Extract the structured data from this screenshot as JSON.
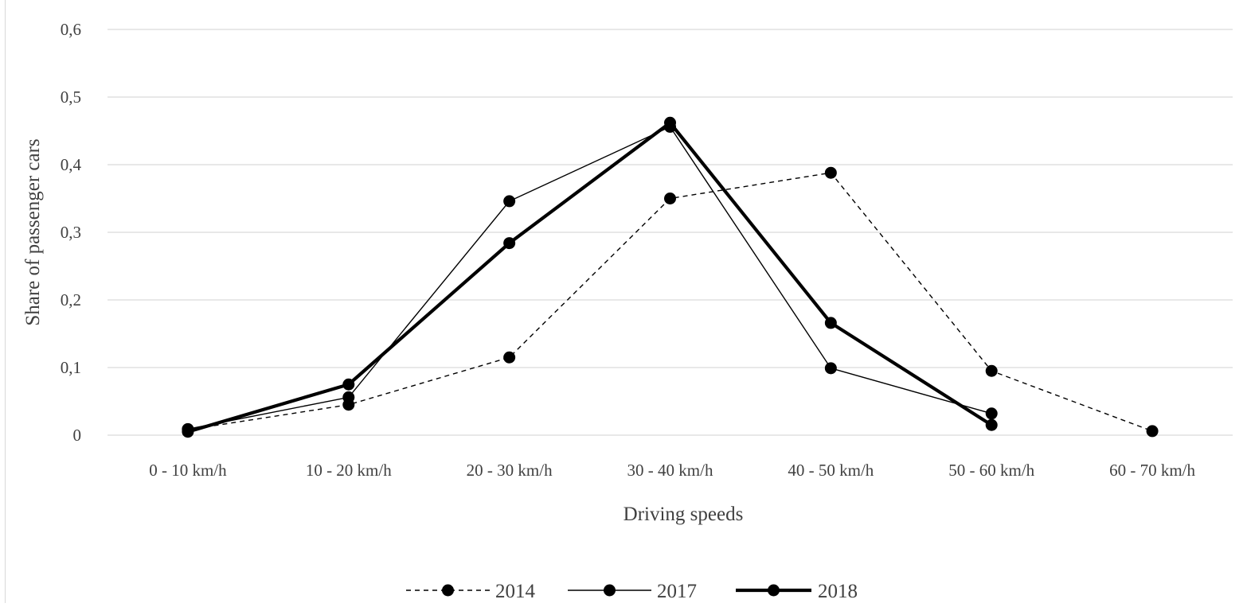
{
  "chart_data": {
    "type": "line",
    "title": "",
    "xlabel": "Driving speeds",
    "ylabel": "Share of passenger cars",
    "ylim": [
      0,
      0.6
    ],
    "yticks": [
      "0",
      "0,1",
      "0,2",
      "0,3",
      "0,4",
      "0,5",
      "0,6"
    ],
    "ytick_values": [
      0,
      0.1,
      0.2,
      0.3,
      0.4,
      0.5,
      0.6
    ],
    "grid": "horizontal",
    "legend_position": "bottom",
    "categories": [
      "0 - 10 km/h",
      "10 - 20 km/h",
      "20 - 30 km/h",
      "30 - 40 km/h",
      "40 - 50 km/h",
      "50 - 60 km/h",
      "60 - 70 km/h"
    ],
    "series": [
      {
        "name": "2014",
        "style": "dashed-thin",
        "values": [
          0.008,
          0.045,
          0.115,
          0.35,
          0.388,
          0.095,
          0.006
        ]
      },
      {
        "name": "2017",
        "style": "solid-thin",
        "values": [
          0.009,
          0.056,
          0.346,
          0.456,
          0.099,
          0.032,
          null
        ]
      },
      {
        "name": "2018",
        "style": "solid-thick",
        "values": [
          0.005,
          0.075,
          0.284,
          0.462,
          0.166,
          0.015,
          null
        ]
      }
    ],
    "colors": {
      "line": "#000000",
      "grid": "#d9d9d9",
      "text": "#404040"
    }
  }
}
